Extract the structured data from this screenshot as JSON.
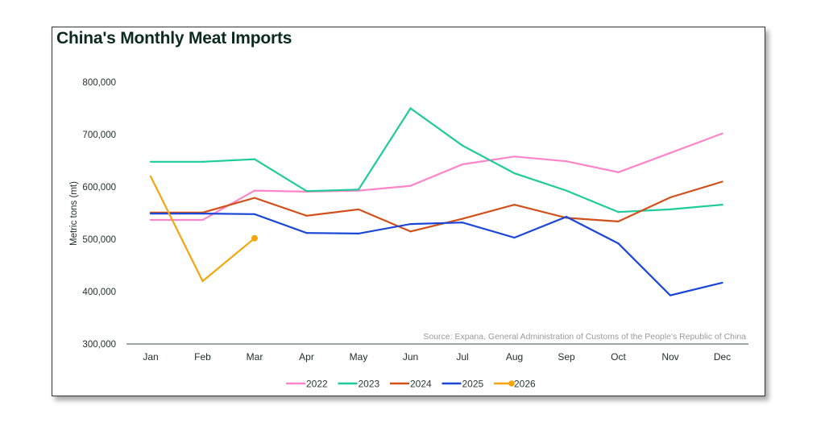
{
  "chart_data": {
    "type": "line",
    "title": "China's Monthly Meat Imports",
    "xlabel": "",
    "ylabel": "Metric tons (mt)",
    "ylim": [
      300000,
      800000
    ],
    "yticks": [
      800000,
      700000,
      600000,
      500000,
      400000,
      300000
    ],
    "ytick_labels": [
      "800,000",
      "700,000",
      "600,000",
      "500,000",
      "400,000",
      "300,000"
    ],
    "categories": [
      "Jan",
      "Feb",
      "Mar",
      "Apr",
      "May",
      "Jun",
      "Jul",
      "Aug",
      "Sep",
      "Oct",
      "Nov",
      "Dec"
    ],
    "grid": false,
    "legend_position": "bottom-center",
    "source": "Source: Expana, General Administration of Customs of the People's Republic of China",
    "series": [
      {
        "name": "2022",
        "color": "#ff85c8",
        "marker": false,
        "values": [
          537000,
          537000,
          593000,
          591000,
          593000,
          602000,
          643000,
          658000,
          649000,
          628000,
          665000,
          702000
        ]
      },
      {
        "name": "2023",
        "color": "#1ecb9a",
        "marker": false,
        "values": [
          648000,
          648000,
          653000,
          592000,
          595000,
          750000,
          679000,
          626000,
          593000,
          552000,
          557000,
          566000
        ]
      },
      {
        "name": "2024",
        "color": "#d2501a",
        "marker": false,
        "values": [
          551000,
          551000,
          579000,
          545000,
          557000,
          515000,
          539000,
          566000,
          541000,
          534000,
          580000,
          610000
        ]
      },
      {
        "name": "2025",
        "color": "#1a46d6",
        "marker": false,
        "values": [
          549000,
          549000,
          548000,
          512000,
          511000,
          529000,
          532000,
          503000,
          543000,
          492000,
          393000,
          417000
        ]
      },
      {
        "name": "2026",
        "color": "#f5a60f",
        "marker": true,
        "values": [
          620000,
          420000,
          502000,
          null,
          null,
          null,
          null,
          null,
          null,
          null,
          null,
          null
        ]
      }
    ]
  }
}
